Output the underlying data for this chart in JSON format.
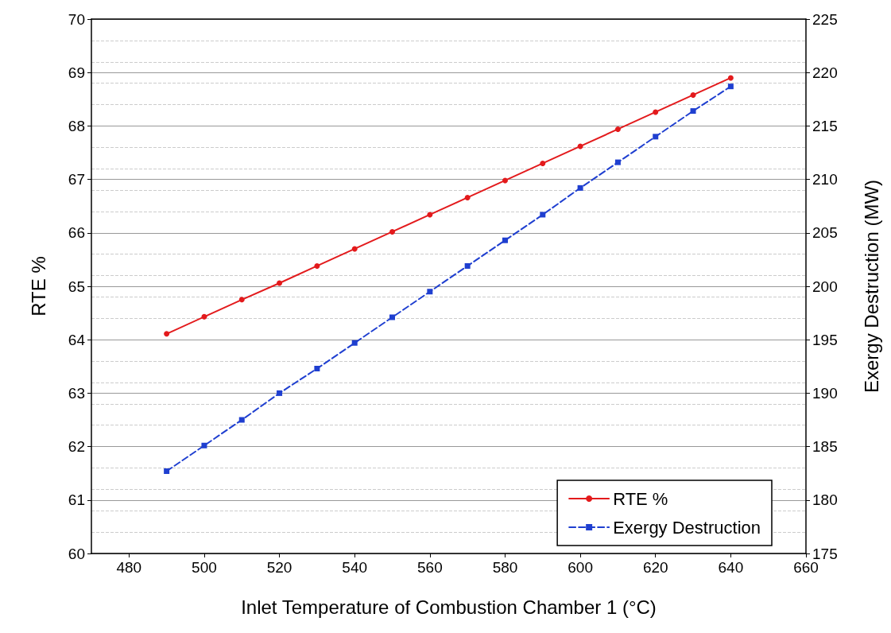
{
  "chart_data": {
    "type": "line",
    "xlabel": "Inlet Temperature of Combustion Chamber 1 (°C)",
    "ylabel": "RTE %",
    "y2label": "Exergy Destruction (MW)",
    "x": [
      490,
      500,
      510,
      520,
      530,
      540,
      550,
      560,
      570,
      580,
      590,
      600,
      610,
      620,
      630,
      640
    ],
    "series": [
      {
        "name": "RTE %",
        "color": "#e31a1c",
        "marker": "circle",
        "line_style": "solid",
        "values": [
          64.11,
          64.43,
          64.75,
          65.06,
          65.38,
          65.7,
          66.02,
          66.34,
          66.66,
          66.98,
          67.3,
          67.62,
          67.94,
          68.26,
          68.58,
          68.9
        ]
      },
      {
        "name": "Exergy Destruction",
        "color": "#1f3fd0",
        "marker": "square",
        "line_style": "dashed",
        "axis": "y2",
        "values": [
          182.7,
          185.1,
          187.5,
          190.0,
          192.3,
          194.7,
          197.1,
          199.5,
          201.9,
          204.3,
          206.7,
          209.2,
          211.6,
          214.0,
          216.4,
          218.7
        ]
      }
    ],
    "xlim": [
      470,
      660
    ],
    "xticks": [
      480,
      500,
      520,
      540,
      560,
      580,
      600,
      620,
      640,
      660
    ],
    "ylim": [
      60,
      70
    ],
    "yticks": [
      60,
      61,
      62,
      63,
      64,
      65,
      66,
      67,
      68,
      69,
      70
    ],
    "y2lim": [
      175,
      225
    ],
    "y2ticks": [
      175,
      180,
      185,
      190,
      195,
      200,
      205,
      210,
      215,
      220,
      225
    ],
    "grid": "y",
    "legend": "bottom right"
  }
}
